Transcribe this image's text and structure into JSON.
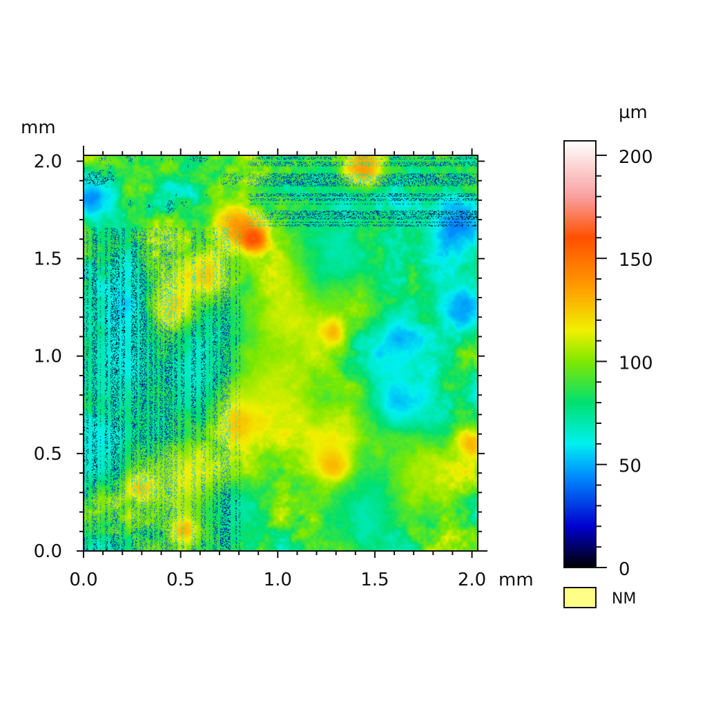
{
  "chart_data": {
    "type": "heatmap",
    "title": "",
    "x_unit": "mm",
    "y_unit": "mm",
    "xlim": [
      0.0,
      2.03
    ],
    "ylim": [
      0.0,
      2.03
    ],
    "x_ticks": [
      "0.0",
      "0.5",
      "1.0",
      "1.5",
      "2.0"
    ],
    "y_ticks": [
      "0.0",
      "0.5",
      "1.0",
      "1.5",
      "2.0"
    ],
    "x_tick_values": [
      0.0,
      0.5,
      1.0,
      1.5,
      2.0
    ],
    "y_tick_values": [
      0.0,
      0.5,
      1.0,
      1.5,
      2.0
    ],
    "colorbar": {
      "unit": "µm",
      "range": [
        0,
        207
      ],
      "ticks": [
        "0",
        "50",
        "100",
        "150",
        "200"
      ],
      "tick_values": [
        0,
        50,
        100,
        150,
        200
      ],
      "colormap_stops": [
        {
          "value": 0,
          "color": "#000000"
        },
        {
          "value": 20,
          "color": "#0000d0"
        },
        {
          "value": 45,
          "color": "#0090ff"
        },
        {
          "value": 60,
          "color": "#00f0f0"
        },
        {
          "value": 80,
          "color": "#00e070"
        },
        {
          "value": 100,
          "color": "#80e800"
        },
        {
          "value": 115,
          "color": "#f0f000"
        },
        {
          "value": 135,
          "color": "#ffa000"
        },
        {
          "value": 160,
          "color": "#ff5000"
        },
        {
          "value": 180,
          "color": "#f8a0a0"
        },
        {
          "value": 207,
          "color": "#ffffff"
        }
      ]
    },
    "not_measured": {
      "label": "NM",
      "color": "#ffff88"
    },
    "features": [
      {
        "x": 0.05,
        "y": 1.82,
        "value": 30,
        "r": 0.1
      },
      {
        "x": 1.92,
        "y": 1.65,
        "value": 25,
        "r": 0.14
      },
      {
        "x": 1.95,
        "y": 1.25,
        "value": 30,
        "r": 0.1
      },
      {
        "x": 1.62,
        "y": 1.08,
        "value": 35,
        "r": 0.14
      },
      {
        "x": 1.62,
        "y": 0.75,
        "value": 40,
        "r": 0.16
      },
      {
        "x": 0.22,
        "y": 1.25,
        "value": 40,
        "r": 0.12
      },
      {
        "x": 0.1,
        "y": 0.55,
        "value": 50,
        "r": 0.16
      },
      {
        "x": 1.3,
        "y": 1.55,
        "value": 55,
        "r": 0.18
      },
      {
        "x": 0.55,
        "y": 0.9,
        "value": 55,
        "r": 0.16
      },
      {
        "x": 1.45,
        "y": 0.2,
        "value": 55,
        "r": 0.16
      },
      {
        "x": 0.75,
        "y": 0.25,
        "value": 55,
        "r": 0.12
      },
      {
        "x": 0.15,
        "y": 0.95,
        "value": 55,
        "r": 0.16
      },
      {
        "x": 0.78,
        "y": 1.68,
        "value": 150,
        "r": 0.08
      },
      {
        "x": 0.88,
        "y": 1.6,
        "value": 185,
        "r": 0.05
      },
      {
        "x": 0.62,
        "y": 1.42,
        "value": 140,
        "r": 0.1
      },
      {
        "x": 0.45,
        "y": 1.25,
        "value": 140,
        "r": 0.09
      },
      {
        "x": 0.82,
        "y": 0.68,
        "value": 155,
        "r": 0.08
      },
      {
        "x": 1.28,
        "y": 0.45,
        "value": 165,
        "r": 0.06
      },
      {
        "x": 1.28,
        "y": 1.12,
        "value": 160,
        "r": 0.05
      },
      {
        "x": 0.52,
        "y": 0.12,
        "value": 150,
        "r": 0.06
      },
      {
        "x": 0.3,
        "y": 0.32,
        "value": 145,
        "r": 0.06
      },
      {
        "x": 1.45,
        "y": 1.95,
        "value": 150,
        "r": 0.07
      },
      {
        "x": 1.98,
        "y": 0.55,
        "value": 145,
        "r": 0.06
      },
      {
        "x": 1.05,
        "y": 1.2,
        "value": 115,
        "r": 0.22
      },
      {
        "x": 0.95,
        "y": 0.8,
        "value": 110,
        "r": 0.2
      },
      {
        "x": 0.5,
        "y": 0.35,
        "value": 118,
        "r": 0.18
      },
      {
        "x": 1.25,
        "y": 0.55,
        "value": 120,
        "r": 0.16
      },
      {
        "x": 1.75,
        "y": 0.4,
        "value": 110,
        "r": 0.14
      }
    ]
  },
  "legend": {
    "nm_label": "NM"
  }
}
